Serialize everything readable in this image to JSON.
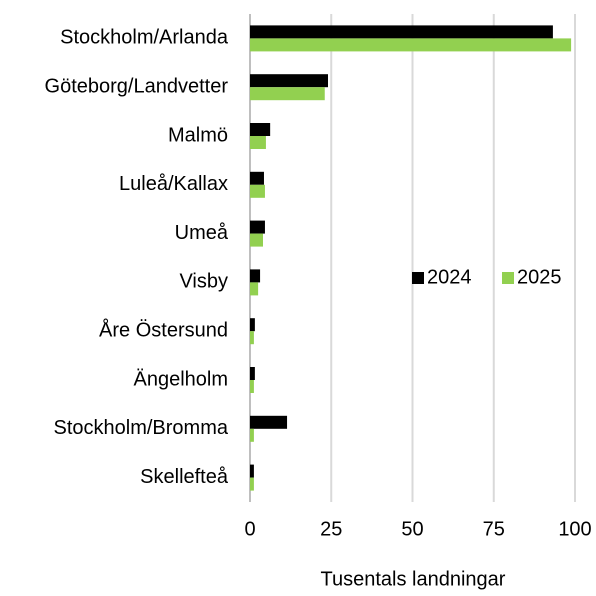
{
  "chart_data": {
    "type": "barh",
    "categories": [
      "Stockholm/Arlanda",
      "Göteborg/Landvetter",
      "Malmö",
      "Luleå/Kallax",
      "Umeå",
      "Visby",
      "Åre Östersund",
      "Ängelholm",
      "Stockholm/Bromma",
      "Skellefteå"
    ],
    "series": [
      {
        "name": "2024",
        "color": "#000000",
        "values": [
          93.2,
          24,
          6.2,
          4.3,
          4.6,
          3.1,
          1.5,
          1.5,
          11.4,
          1.2
        ]
      },
      {
        "name": "2025",
        "color": "#92d050",
        "values": [
          98.8,
          23,
          4.9,
          4.6,
          4,
          2.5,
          1.2,
          1.2,
          1.2,
          1.2
        ]
      }
    ],
    "xlim": [
      0,
      100
    ],
    "xticks": [
      0,
      25,
      50,
      75,
      100
    ],
    "xlabel": "Tusentals landningar",
    "grid": true,
    "legend": "right"
  }
}
